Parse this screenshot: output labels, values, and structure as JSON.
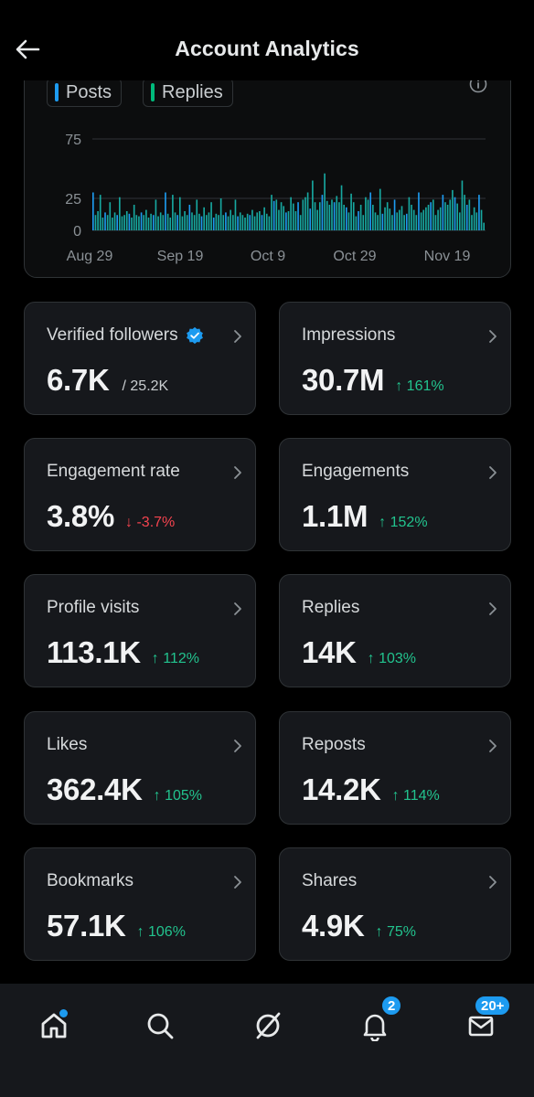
{
  "header": {
    "title": "Account Analytics"
  },
  "chart": {
    "legend": [
      {
        "label": "Posts",
        "color": "#1d9bf0"
      },
      {
        "label": "Replies",
        "color": "#00ba7c"
      }
    ]
  },
  "chart_data": {
    "type": "bar",
    "y_ticks": [
      "75",
      "25",
      "0"
    ],
    "x_ticks": [
      "Aug 29",
      "Sep 19",
      "Oct 9",
      "Oct 29",
      "Nov 19"
    ],
    "ylim": [
      0,
      90
    ],
    "series": [
      {
        "name": "Posts",
        "color": "#1d9bf0"
      },
      {
        "name": "Replies",
        "color": "#00ba7c"
      }
    ],
    "values": [
      30,
      12,
      15,
      28,
      10,
      14,
      12,
      22,
      10,
      14,
      12,
      26,
      11,
      12,
      15,
      13,
      10,
      20,
      12,
      11,
      14,
      12,
      16,
      10,
      13,
      12,
      24,
      11,
      14,
      12,
      30,
      13,
      10,
      28,
      14,
      12,
      26,
      11,
      15,
      12,
      20,
      14,
      12,
      24,
      13,
      11,
      18,
      12,
      14,
      22,
      10,
      13,
      12,
      25,
      12,
      14,
      11,
      16,
      12,
      24,
      11,
      14,
      12,
      10,
      13,
      12,
      16,
      11,
      14,
      15,
      12,
      18,
      13,
      11,
      28,
      23,
      24,
      16,
      22,
      19,
      14,
      15,
      26,
      21,
      15,
      22,
      12,
      24,
      26,
      30,
      17,
      40,
      22,
      16,
      22,
      28,
      46,
      23,
      20,
      24,
      22,
      27,
      22,
      36,
      20,
      18,
      14,
      29,
      22,
      11,
      15,
      20,
      12,
      26,
      24,
      30,
      20,
      14,
      12,
      33,
      13,
      18,
      22,
      17,
      12,
      24,
      14,
      16,
      19,
      12,
      13,
      26,
      20,
      16,
      12,
      30,
      14,
      16,
      18,
      20,
      22,
      24,
      12,
      16,
      18,
      28,
      22,
      20,
      24,
      32,
      26,
      21,
      14,
      40,
      28,
      20,
      24,
      12,
      18,
      14,
      28,
      16,
      6
    ]
  },
  "cards": [
    {
      "label": "Verified followers",
      "value": "6.7K",
      "sub": "/ 25.2K",
      "verified": true
    },
    {
      "label": "Impressions",
      "value": "30.7M",
      "change": "↑ 161%",
      "direction": "up"
    },
    {
      "label": "Engagement rate",
      "value": "3.8%",
      "change": "↓ -3.7%",
      "direction": "down"
    },
    {
      "label": "Engagements",
      "value": "1.1M",
      "change": "↑ 152%",
      "direction": "up"
    },
    {
      "label": "Profile visits",
      "value": "113.1K",
      "change": "↑ 112%",
      "direction": "up"
    },
    {
      "label": "Replies",
      "value": "14K",
      "change": "↑ 103%",
      "direction": "up"
    },
    {
      "label": "Likes",
      "value": "362.4K",
      "change": "↑ 105%",
      "direction": "up"
    },
    {
      "label": "Reposts",
      "value": "14.2K",
      "change": "↑ 114%",
      "direction": "up"
    },
    {
      "label": "Bookmarks",
      "value": "57.1K",
      "change": "↑ 106%",
      "direction": "up"
    },
    {
      "label": "Shares",
      "value": "4.9K",
      "change": "↑ 75%",
      "direction": "up"
    }
  ],
  "nav": {
    "items": [
      "home-icon",
      "search-icon",
      "grok-icon",
      "notifications-icon",
      "messages-icon"
    ],
    "notifications_badge": "2",
    "messages_badge": "20+",
    "accent": "#1d9bf0"
  }
}
